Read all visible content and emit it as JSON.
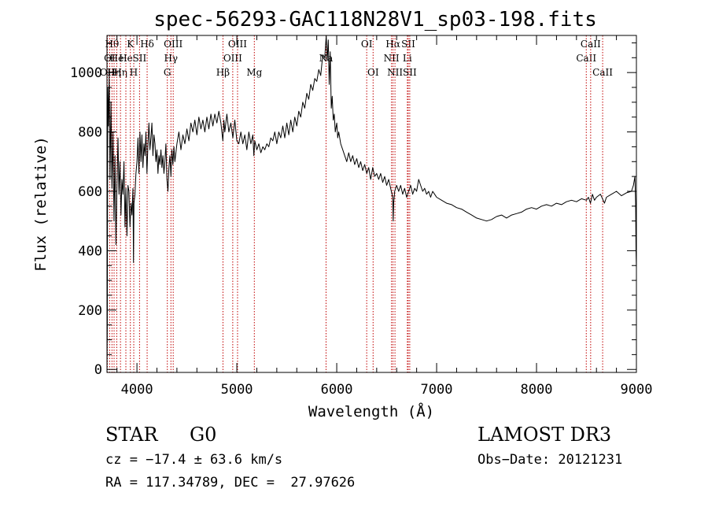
{
  "chart_data": {
    "type": "line",
    "title": "spec-56293-GAC118N28V1_sp03-198.fits",
    "xlabel": "Wavelength (Å)",
    "ylabel": "Flux (relative)",
    "xlim": [
      3700,
      9000
    ],
    "ylim": [
      -10,
      1125
    ],
    "x_ticks": [
      4000,
      5000,
      6000,
      7000,
      8000,
      9000
    ],
    "x_tick_labels": [
      "4000",
      "5000",
      "6000",
      "7000",
      "8000",
      "9000"
    ],
    "y_ticks": [
      0,
      200,
      400,
      600,
      800,
      1000
    ],
    "y_tick_labels": [
      "0",
      "200",
      "400",
      "600",
      "800",
      "1000"
    ],
    "series": [
      {
        "name": "spectrum",
        "color": "#000000",
        "points": [
          [
            3700,
            0
          ],
          [
            3703,
            150
          ],
          [
            3708,
            950
          ],
          [
            3715,
            820
          ],
          [
            3722,
            1000
          ],
          [
            3730,
            640
          ],
          [
            3740,
            900
          ],
          [
            3750,
            610
          ],
          [
            3760,
            800
          ],
          [
            3770,
            500
          ],
          [
            3780,
            720
          ],
          [
            3790,
            420
          ],
          [
            3800,
            620
          ],
          [
            3810,
            780
          ],
          [
            3820,
            590
          ],
          [
            3830,
            700
          ],
          [
            3840,
            520
          ],
          [
            3850,
            640
          ],
          [
            3860,
            590
          ],
          [
            3870,
            700
          ],
          [
            3880,
            480
          ],
          [
            3890,
            610
          ],
          [
            3900,
            450
          ],
          [
            3910,
            620
          ],
          [
            3920,
            600
          ],
          [
            3930,
            480
          ],
          [
            3940,
            560
          ],
          [
            3950,
            520
          ],
          [
            3960,
            610
          ],
          [
            3965,
            360
          ],
          [
            3970,
            560
          ],
          [
            3980,
            590
          ],
          [
            3990,
            660
          ],
          [
            4000,
            700
          ],
          [
            4010,
            780
          ],
          [
            4020,
            660
          ],
          [
            4030,
            800
          ],
          [
            4040,
            700
          ],
          [
            4050,
            790
          ],
          [
            4060,
            680
          ],
          [
            4070,
            760
          ],
          [
            4080,
            720
          ],
          [
            4090,
            800
          ],
          [
            4100,
            660
          ],
          [
            4110,
            760
          ],
          [
            4120,
            830
          ],
          [
            4130,
            740
          ],
          [
            4140,
            780
          ],
          [
            4150,
            830
          ],
          [
            4160,
            720
          ],
          [
            4170,
            790
          ],
          [
            4180,
            760
          ],
          [
            4190,
            700
          ],
          [
            4200,
            740
          ],
          [
            4210,
            660
          ],
          [
            4220,
            720
          ],
          [
            4230,
            690
          ],
          [
            4240,
            740
          ],
          [
            4250,
            680
          ],
          [
            4260,
            720
          ],
          [
            4270,
            660
          ],
          [
            4280,
            700
          ],
          [
            4290,
            760
          ],
          [
            4300,
            640
          ],
          [
            4310,
            600
          ],
          [
            4320,
            680
          ],
          [
            4330,
            720
          ],
          [
            4340,
            650
          ],
          [
            4350,
            740
          ],
          [
            4360,
            690
          ],
          [
            4370,
            750
          ],
          [
            4380,
            700
          ],
          [
            4400,
            760
          ],
          [
            4420,
            800
          ],
          [
            4440,
            740
          ],
          [
            4460,
            790
          ],
          [
            4480,
            760
          ],
          [
            4500,
            810
          ],
          [
            4520,
            770
          ],
          [
            4540,
            830
          ],
          [
            4560,
            800
          ],
          [
            4580,
            840
          ],
          [
            4600,
            790
          ],
          [
            4620,
            850
          ],
          [
            4640,
            810
          ],
          [
            4660,
            840
          ],
          [
            4680,
            800
          ],
          [
            4700,
            850
          ],
          [
            4720,
            810
          ],
          [
            4740,
            860
          ],
          [
            4760,
            820
          ],
          [
            4780,
            860
          ],
          [
            4800,
            830
          ],
          [
            4820,
            870
          ],
          [
            4840,
            830
          ],
          [
            4860,
            770
          ],
          [
            4870,
            840
          ],
          [
            4880,
            800
          ],
          [
            4900,
            860
          ],
          [
            4920,
            800
          ],
          [
            4940,
            830
          ],
          [
            4960,
            780
          ],
          [
            4980,
            840
          ],
          [
            5000,
            770
          ],
          [
            5020,
            760
          ],
          [
            5040,
            800
          ],
          [
            5060,
            760
          ],
          [
            5080,
            790
          ],
          [
            5100,
            740
          ],
          [
            5120,
            800
          ],
          [
            5140,
            760
          ],
          [
            5160,
            790
          ],
          [
            5170,
            720
          ],
          [
            5180,
            770
          ],
          [
            5200,
            740
          ],
          [
            5220,
            760
          ],
          [
            5240,
            730
          ],
          [
            5260,
            750
          ],
          [
            5280,
            740
          ],
          [
            5300,
            760
          ],
          [
            5320,
            750
          ],
          [
            5340,
            780
          ],
          [
            5360,
            770
          ],
          [
            5380,
            800
          ],
          [
            5400,
            760
          ],
          [
            5420,
            800
          ],
          [
            5440,
            780
          ],
          [
            5460,
            820
          ],
          [
            5480,
            780
          ],
          [
            5500,
            830
          ],
          [
            5520,
            790
          ],
          [
            5540,
            840
          ],
          [
            5560,
            800
          ],
          [
            5580,
            850
          ],
          [
            5600,
            820
          ],
          [
            5620,
            870
          ],
          [
            5640,
            850
          ],
          [
            5660,
            900
          ],
          [
            5680,
            880
          ],
          [
            5700,
            930
          ],
          [
            5720,
            910
          ],
          [
            5740,
            960
          ],
          [
            5760,
            940
          ],
          [
            5780,
            980
          ],
          [
            5800,
            970
          ],
          [
            5820,
            1010
          ],
          [
            5840,
            990
          ],
          [
            5860,
            1060
          ],
          [
            5880,
            1050
          ],
          [
            5895,
            1125
          ],
          [
            5905,
            1040
          ],
          [
            5915,
            1110
          ],
          [
            5925,
            960
          ],
          [
            5935,
            1070
          ],
          [
            5945,
            880
          ],
          [
            5955,
            920
          ],
          [
            5965,
            840
          ],
          [
            5975,
            860
          ],
          [
            5985,
            800
          ],
          [
            6000,
            830
          ],
          [
            6010,
            780
          ],
          [
            6020,
            800
          ],
          [
            6040,
            760
          ],
          [
            6060,
            740
          ],
          [
            6080,
            720
          ],
          [
            6100,
            700
          ],
          [
            6120,
            730
          ],
          [
            6140,
            700
          ],
          [
            6160,
            720
          ],
          [
            6180,
            690
          ],
          [
            6200,
            710
          ],
          [
            6220,
            680
          ],
          [
            6240,
            700
          ],
          [
            6260,
            670
          ],
          [
            6280,
            690
          ],
          [
            6300,
            660
          ],
          [
            6320,
            680
          ],
          [
            6340,
            640
          ],
          [
            6360,
            680
          ],
          [
            6380,
            650
          ],
          [
            6400,
            660
          ],
          [
            6420,
            640
          ],
          [
            6440,
            660
          ],
          [
            6460,
            630
          ],
          [
            6480,
            650
          ],
          [
            6500,
            620
          ],
          [
            6520,
            640
          ],
          [
            6540,
            610
          ],
          [
            6560,
            580
          ],
          [
            6565,
            500
          ],
          [
            6570,
            560
          ],
          [
            6580,
            600
          ],
          [
            6600,
            620
          ],
          [
            6620,
            600
          ],
          [
            6640,
            620
          ],
          [
            6660,
            590
          ],
          [
            6680,
            610
          ],
          [
            6700,
            580
          ],
          [
            6720,
            600
          ],
          [
            6740,
            620
          ],
          [
            6760,
            590
          ],
          [
            6780,
            610
          ],
          [
            6800,
            600
          ],
          [
            6820,
            640
          ],
          [
            6840,
            620
          ],
          [
            6860,
            600
          ],
          [
            6880,
            610
          ],
          [
            6900,
            590
          ],
          [
            6920,
            600
          ],
          [
            6940,
            580
          ],
          [
            6960,
            600
          ],
          [
            6980,
            590
          ],
          [
            7000,
            580
          ],
          [
            7050,
            570
          ],
          [
            7100,
            560
          ],
          [
            7150,
            555
          ],
          [
            7200,
            545
          ],
          [
            7250,
            540
          ],
          [
            7300,
            530
          ],
          [
            7350,
            520
          ],
          [
            7400,
            510
          ],
          [
            7450,
            505
          ],
          [
            7500,
            500
          ],
          [
            7550,
            505
          ],
          [
            7600,
            515
          ],
          [
            7650,
            520
          ],
          [
            7700,
            510
          ],
          [
            7750,
            520
          ],
          [
            7800,
            525
          ],
          [
            7850,
            530
          ],
          [
            7900,
            540
          ],
          [
            7950,
            545
          ],
          [
            8000,
            540
          ],
          [
            8050,
            550
          ],
          [
            8100,
            555
          ],
          [
            8150,
            550
          ],
          [
            8200,
            560
          ],
          [
            8250,
            555
          ],
          [
            8300,
            565
          ],
          [
            8350,
            570
          ],
          [
            8400,
            565
          ],
          [
            8450,
            575
          ],
          [
            8500,
            570
          ],
          [
            8520,
            580
          ],
          [
            8540,
            560
          ],
          [
            8560,
            590
          ],
          [
            8580,
            570
          ],
          [
            8600,
            580
          ],
          [
            8640,
            590
          ],
          [
            8680,
            560
          ],
          [
            8700,
            580
          ],
          [
            8750,
            590
          ],
          [
            8800,
            600
          ],
          [
            8850,
            585
          ],
          [
            8900,
            595
          ],
          [
            8950,
            600
          ],
          [
            8970,
            620
          ],
          [
            8985,
            650
          ],
          [
            8992,
            560
          ],
          [
            8996,
            400
          ],
          [
            9000,
            340
          ]
        ]
      }
    ],
    "line_markers": {
      "color": "#c00000",
      "items": [
        {
          "wavelength": 3704,
          "label": "OII",
          "row": 2
        },
        {
          "wavelength": 3727,
          "label": "OI",
          "row": 1
        },
        {
          "wavelength": 3750,
          "label": "Hθ",
          "row": 0
        },
        {
          "wavelength": 3771,
          "label": "Hη",
          "row": 2
        },
        {
          "wavelength": 3798,
          "label": "He",
          "row": 1
        },
        {
          "wavelength": 3835,
          "label": "Hη",
          "row": 2
        },
        {
          "wavelength": 3889,
          "label": "He",
          "row": 1
        },
        {
          "wavelength": 3934,
          "label": "K",
          "row": 0
        },
        {
          "wavelength": 3968,
          "label": "H",
          "row": 2
        },
        {
          "wavelength": 4026,
          "label": "SII",
          "row": 1
        },
        {
          "wavelength": 4102,
          "label": "Hδ",
          "row": 0
        },
        {
          "wavelength": 4304,
          "label": "G",
          "row": 2
        },
        {
          "wavelength": 4340,
          "label": "Hγ",
          "row": 1
        },
        {
          "wavelength": 4363,
          "label": "OIII",
          "row": 0
        },
        {
          "wavelength": 4861,
          "label": "Hβ",
          "row": 2
        },
        {
          "wavelength": 4959,
          "label": "OIII",
          "row": 1
        },
        {
          "wavelength": 5007,
          "label": "OIII",
          "row": 0
        },
        {
          "wavelength": 5175,
          "label": "Mg",
          "row": 2
        },
        {
          "wavelength": 5893,
          "label": "Na",
          "row": 1
        },
        {
          "wavelength": 6300,
          "label": "OI",
          "row": 0
        },
        {
          "wavelength": 6364,
          "label": "OI",
          "row": 2
        },
        {
          "wavelength": 6548,
          "label": "NII",
          "row": 1
        },
        {
          "wavelength": 6563,
          "label": "Hα",
          "row": 0
        },
        {
          "wavelength": 6583,
          "label": "NII",
          "row": 2
        },
        {
          "wavelength": 6707,
          "label": "Li",
          "row": 1
        },
        {
          "wavelength": 6716,
          "label": "SII",
          "row": 0
        },
        {
          "wavelength": 6731,
          "label": "SII",
          "row": 2
        },
        {
          "wavelength": 8498,
          "label": "CaII",
          "row": 1
        },
        {
          "wavelength": 8542,
          "label": "CaII",
          "row": 0
        },
        {
          "wavelength": 8662,
          "label": "CaII",
          "row": 2
        }
      ]
    }
  },
  "info": {
    "class": "STAR",
    "subclass": "G0",
    "survey": "LAMOST DR3",
    "redshift": "cz = −17.4 ± 63.6 km/s",
    "obs_date": "Obs−Date: 20121231",
    "coords": "RA = 117.34789, DEC =  27.97626"
  }
}
